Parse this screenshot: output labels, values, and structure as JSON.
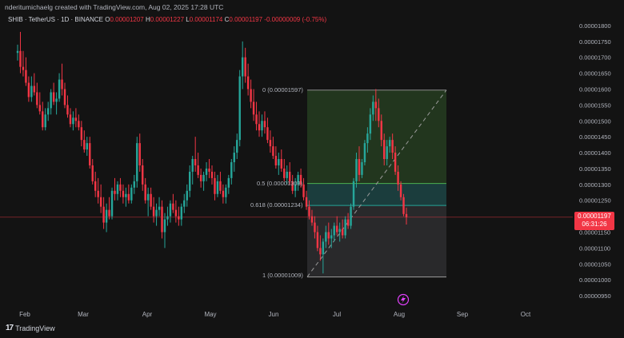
{
  "header": {
    "created_line": "nderitumichaelg created with TradingView.com, Aug 02, 2025 17:28 UTC"
  },
  "legend": {
    "symbol": "SHIB · TetherUS · 1D · BINANCE",
    "open_label": "O",
    "open": "0.00001207",
    "high_label": "H",
    "high": "0.00001227",
    "low_label": "L",
    "low": "0.00001174",
    "close_label": "C",
    "close": "0.00001197",
    "change": "-0.00000009 (-0.75%)"
  },
  "price_tag": {
    "price": "0.00001197",
    "countdown": "06:31:26"
  },
  "fib": {
    "level_0": "0 (0.00001597)",
    "level_05": "0.5 (0.00001303)",
    "level_0618": "0.618 (0.00001234)",
    "level_1": "1 (0.00001009)"
  },
  "footer": {
    "brand": "TradingView"
  },
  "colors": {
    "up": "#26a69a",
    "down": "#f23645",
    "fib_green": "#2e4a26",
    "fib_line": "#4caf50"
  },
  "chart_data": {
    "type": "candlestick",
    "x_ticks": [
      "Feb",
      "Mar",
      "Apr",
      "May",
      "Jun",
      "Jul",
      "Aug",
      "Sep",
      "Oct"
    ],
    "y_ticks": [
      "0.00001800",
      "0.00001750",
      "0.00001700",
      "0.00001650",
      "0.00001600",
      "0.00001550",
      "0.00001500",
      "0.00001450",
      "0.00001400",
      "0.00001350",
      "0.00001300",
      "0.00001250",
      "0.00001200",
      "0.00001150",
      "0.00001100",
      "0.00001050",
      "0.00001000",
      "0.00000950"
    ],
    "ylim": [
      9.3e-06,
      1.82e-05
    ],
    "fib_levels": [
      {
        "ratio": "0",
        "price": 1.597e-05
      },
      {
        "ratio": "0.5",
        "price": 1.303e-05
      },
      {
        "ratio": "0.618",
        "price": 1.234e-05
      },
      {
        "ratio": "1",
        "price": 1.009e-05
      }
    ],
    "last_price": 1.197e-05,
    "candles": [
      [
        1714,
        1740,
        1690,
        1720
      ],
      [
        1720,
        1780,
        1650,
        1670
      ],
      [
        1670,
        1720,
        1640,
        1660
      ],
      [
        1660,
        1700,
        1610,
        1620
      ],
      [
        1620,
        1640,
        1560,
        1575
      ],
      [
        1575,
        1640,
        1560,
        1610
      ],
      [
        1610,
        1650,
        1580,
        1590
      ],
      [
        1590,
        1620,
        1540,
        1550
      ],
      [
        1550,
        1590,
        1520,
        1530
      ],
      [
        1530,
        1560,
        1470,
        1480
      ],
      [
        1480,
        1540,
        1470,
        1520
      ],
      [
        1520,
        1560,
        1500,
        1540
      ],
      [
        1540,
        1600,
        1520,
        1590
      ],
      [
        1590,
        1620,
        1550,
        1560
      ],
      [
        1560,
        1590,
        1520,
        1570
      ],
      [
        1570,
        1650,
        1560,
        1630
      ],
      [
        1630,
        1680,
        1580,
        1600
      ],
      [
        1600,
        1620,
        1540,
        1550
      ],
      [
        1550,
        1580,
        1510,
        1520
      ],
      [
        1520,
        1540,
        1480,
        1490
      ],
      [
        1490,
        1530,
        1470,
        1510
      ],
      [
        1510,
        1540,
        1480,
        1500
      ],
      [
        1500,
        1520,
        1470,
        1480
      ],
      [
        1480,
        1500,
        1420,
        1440
      ],
      [
        1440,
        1470,
        1400,
        1410
      ],
      [
        1410,
        1450,
        1390,
        1430
      ],
      [
        1430,
        1450,
        1350,
        1360
      ],
      [
        1360,
        1380,
        1300,
        1310
      ],
      [
        1310,
        1340,
        1260,
        1280
      ],
      [
        1280,
        1320,
        1240,
        1260
      ],
      [
        1260,
        1300,
        1210,
        1230
      ],
      [
        1230,
        1260,
        1160,
        1180
      ],
      [
        1180,
        1240,
        1150,
        1220
      ],
      [
        1220,
        1260,
        1190,
        1200
      ],
      [
        1200,
        1290,
        1190,
        1280
      ],
      [
        1280,
        1320,
        1250,
        1270
      ],
      [
        1270,
        1310,
        1250,
        1300
      ],
      [
        1300,
        1320,
        1260,
        1280
      ],
      [
        1280,
        1300,
        1240,
        1260
      ],
      [
        1260,
        1290,
        1230,
        1270
      ],
      [
        1270,
        1300,
        1240,
        1250
      ],
      [
        1250,
        1300,
        1240,
        1290
      ],
      [
        1290,
        1330,
        1270,
        1310
      ],
      [
        1310,
        1450,
        1290,
        1430
      ],
      [
        1430,
        1460,
        1340,
        1360
      ],
      [
        1360,
        1380,
        1280,
        1300
      ],
      [
        1300,
        1320,
        1240,
        1250
      ],
      [
        1250,
        1290,
        1200,
        1270
      ],
      [
        1270,
        1290,
        1220,
        1230
      ],
      [
        1230,
        1260,
        1180,
        1200
      ],
      [
        1200,
        1240,
        1170,
        1220
      ],
      [
        1220,
        1260,
        1200,
        1230
      ],
      [
        1230,
        1250,
        1130,
        1150
      ],
      [
        1150,
        1210,
        1100,
        1190
      ],
      [
        1190,
        1230,
        1170,
        1200
      ],
      [
        1200,
        1250,
        1180,
        1240
      ],
      [
        1240,
        1270,
        1210,
        1220
      ],
      [
        1220,
        1250,
        1180,
        1200
      ],
      [
        1200,
        1230,
        1170,
        1190
      ],
      [
        1190,
        1240,
        1170,
        1230
      ],
      [
        1230,
        1270,
        1210,
        1250
      ],
      [
        1250,
        1300,
        1230,
        1280
      ],
      [
        1280,
        1360,
        1260,
        1340
      ],
      [
        1340,
        1390,
        1300,
        1380
      ],
      [
        1380,
        1450,
        1340,
        1360
      ],
      [
        1360,
        1400,
        1320,
        1330
      ],
      [
        1330,
        1350,
        1290,
        1310
      ],
      [
        1310,
        1340,
        1280,
        1330
      ],
      [
        1330,
        1370,
        1310,
        1350
      ],
      [
        1350,
        1380,
        1320,
        1340
      ],
      [
        1340,
        1360,
        1300,
        1320
      ],
      [
        1320,
        1340,
        1250,
        1270
      ],
      [
        1270,
        1330,
        1260,
        1310
      ],
      [
        1310,
        1340,
        1270,
        1280
      ],
      [
        1280,
        1300,
        1240,
        1260
      ],
      [
        1260,
        1300,
        1240,
        1290
      ],
      [
        1290,
        1330,
        1270,
        1320
      ],
      [
        1320,
        1380,
        1300,
        1370
      ],
      [
        1370,
        1420,
        1340,
        1400
      ],
      [
        1400,
        1460,
        1380,
        1440
      ],
      [
        1440,
        1660,
        1420,
        1640
      ],
      [
        1640,
        1750,
        1600,
        1700
      ],
      [
        1700,
        1730,
        1620,
        1640
      ],
      [
        1640,
        1680,
        1580,
        1600
      ],
      [
        1600,
        1630,
        1540,
        1560
      ],
      [
        1560,
        1600,
        1500,
        1520
      ],
      [
        1520,
        1560,
        1470,
        1490
      ],
      [
        1490,
        1530,
        1450,
        1470
      ],
      [
        1470,
        1520,
        1450,
        1500
      ],
      [
        1500,
        1530,
        1460,
        1480
      ],
      [
        1480,
        1510,
        1430,
        1440
      ],
      [
        1440,
        1470,
        1400,
        1420
      ],
      [
        1420,
        1450,
        1380,
        1390
      ],
      [
        1390,
        1420,
        1350,
        1360
      ],
      [
        1360,
        1400,
        1330,
        1380
      ],
      [
        1380,
        1410,
        1340,
        1350
      ],
      [
        1350,
        1380,
        1310,
        1320
      ],
      [
        1320,
        1360,
        1300,
        1340
      ],
      [
        1340,
        1370,
        1300,
        1310
      ],
      [
        1310,
        1330,
        1270,
        1280
      ],
      [
        1280,
        1320,
        1260,
        1300
      ],
      [
        1300,
        1340,
        1280,
        1330
      ],
      [
        1330,
        1350,
        1290,
        1300
      ],
      [
        1300,
        1320,
        1250,
        1260
      ],
      [
        1260,
        1280,
        1220,
        1230
      ],
      [
        1230,
        1250,
        1190,
        1200
      ],
      [
        1200,
        1220,
        1170,
        1180
      ],
      [
        1180,
        1200,
        1130,
        1150
      ],
      [
        1150,
        1170,
        1090,
        1100
      ],
      [
        1100,
        1140,
        1060,
        1080
      ],
      [
        1080,
        1130,
        1020,
        1120
      ],
      [
        1120,
        1170,
        1100,
        1150
      ],
      [
        1150,
        1180,
        1110,
        1130
      ],
      [
        1130,
        1160,
        1100,
        1140
      ],
      [
        1140,
        1180,
        1120,
        1170
      ],
      [
        1170,
        1200,
        1140,
        1150
      ],
      [
        1150,
        1180,
        1120,
        1160
      ],
      [
        1160,
        1190,
        1130,
        1140
      ],
      [
        1140,
        1200,
        1130,
        1190
      ],
      [
        1190,
        1210,
        1160,
        1170
      ],
      [
        1170,
        1240,
        1160,
        1230
      ],
      [
        1230,
        1320,
        1220,
        1310
      ],
      [
        1310,
        1400,
        1290,
        1380
      ],
      [
        1380,
        1420,
        1310,
        1330
      ],
      [
        1330,
        1380,
        1320,
        1370
      ],
      [
        1370,
        1440,
        1360,
        1430
      ],
      [
        1430,
        1480,
        1400,
        1460
      ],
      [
        1460,
        1540,
        1440,
        1520
      ],
      [
        1520,
        1580,
        1500,
        1560
      ],
      [
        1560,
        1600,
        1500,
        1540
      ],
      [
        1540,
        1570,
        1480,
        1500
      ],
      [
        1500,
        1520,
        1420,
        1440
      ],
      [
        1440,
        1460,
        1360,
        1380
      ],
      [
        1380,
        1440,
        1360,
        1420
      ],
      [
        1420,
        1450,
        1400,
        1440
      ],
      [
        1440,
        1460,
        1380,
        1400
      ],
      [
        1400,
        1420,
        1330,
        1340
      ],
      [
        1340,
        1360,
        1280,
        1300
      ],
      [
        1300,
        1310,
        1250,
        1260
      ],
      [
        1260,
        1270,
        1200,
        1207
      ],
      [
        1207,
        1227,
        1174,
        1197
      ]
    ]
  }
}
